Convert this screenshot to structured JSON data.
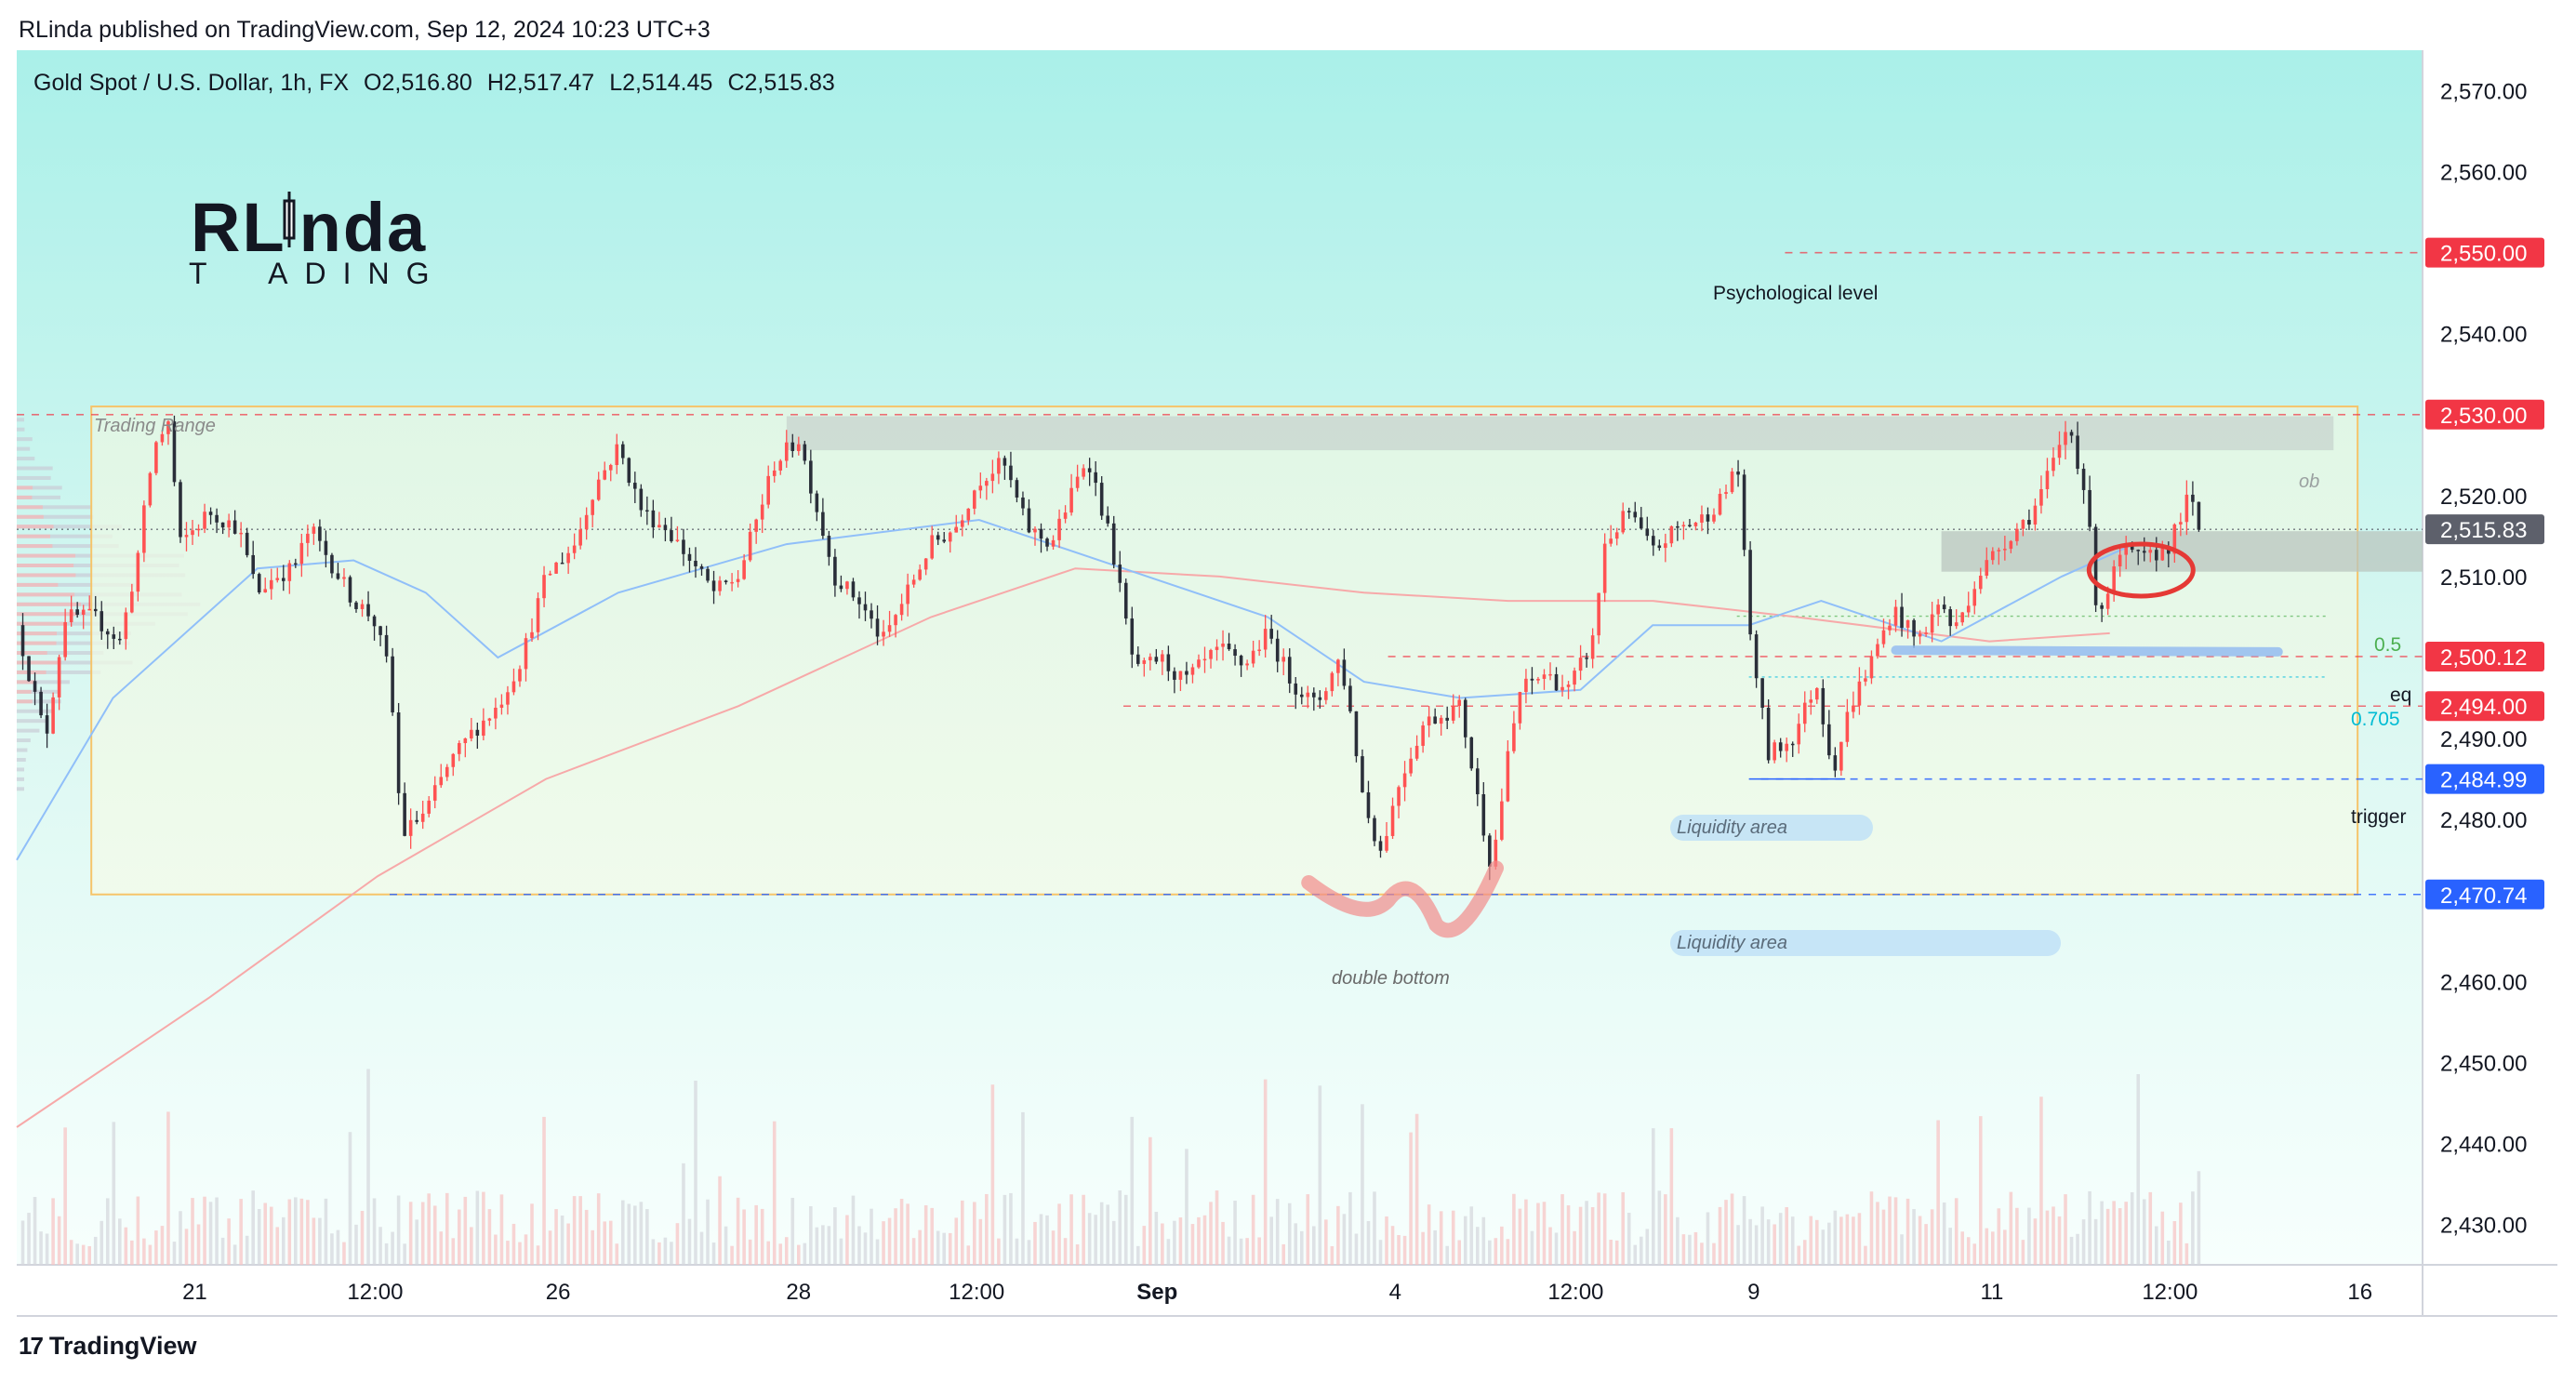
{
  "publisher": "RLinda published on TradingView.com, Sep 12, 2024 10:23 UTC+3",
  "brand": {
    "line1": "RLinda",
    "line2": "TRADING",
    "line1_parts": [
      "R",
      "L",
      "nda"
    ],
    "line2_parts": [
      "T",
      "ADING"
    ]
  },
  "footer": {
    "logo_text": "TradingView",
    "logo_mark": "17"
  },
  "colors": {
    "up": "#ff5252",
    "down": "#2a2e39",
    "price_label": "#f23645",
    "blue_label": "#2962ff",
    "last_label": "#5d606b",
    "ma_blue": "#90bff9",
    "ma_red": "#f7a9a9"
  },
  "chart_data": {
    "type": "candlestick",
    "title": "Gold Spot / U.S. Dollar, 1h, FX",
    "ohlc": {
      "open_label": "O",
      "open": "2,516.80",
      "high_label": "H",
      "high": "2,517.47",
      "low_label": "L",
      "low": "2,514.45",
      "close_label": "C",
      "close": "2,515.83"
    },
    "ylim": [
      2425,
      2575
    ],
    "y_ticks": [
      2570,
      2560,
      2540,
      2520,
      2510,
      2490,
      2480,
      2460,
      2450,
      2440,
      2430
    ],
    "y_tick_labels": [
      "2,570.00",
      "2,560.00",
      "2,540.00",
      "2,520.00",
      "2,510.00",
      "2,490.00",
      "2,480.00",
      "2,460.00",
      "2,450.00",
      "2,440.00",
      "2,430.00"
    ],
    "x_ticks": [
      {
        "label": "21",
        "t": 0.074,
        "bold": false
      },
      {
        "label": "12:00",
        "t": 0.149,
        "bold": false
      },
      {
        "label": "26",
        "t": 0.225,
        "bold": false
      },
      {
        "label": "28",
        "t": 0.325,
        "bold": false
      },
      {
        "label": "12:00",
        "t": 0.399,
        "bold": false
      },
      {
        "label": "Sep",
        "t": 0.474,
        "bold": true
      },
      {
        "label": "4",
        "t": 0.573,
        "bold": false
      },
      {
        "label": "12:00",
        "t": 0.648,
        "bold": false
      },
      {
        "label": "9",
        "t": 0.722,
        "bold": false
      },
      {
        "label": "11",
        "t": 0.821,
        "bold": false
      },
      {
        "label": "12:00",
        "t": 0.895,
        "bold": false
      },
      {
        "label": "16",
        "t": 0.974,
        "bold": false
      }
    ],
    "price_levels": [
      {
        "value": 2550.0,
        "label": "2,550.00",
        "kind": "red",
        "line": "dashed-red"
      },
      {
        "value": 2530.0,
        "label": "2,530.00",
        "kind": "red",
        "line": "dashed-red"
      },
      {
        "value": 2515.83,
        "label": "2,515.83",
        "kind": "last",
        "line": "dotted-gray"
      },
      {
        "value": 2500.12,
        "label": "2,500.12",
        "kind": "red",
        "line": "dashed-red"
      },
      {
        "value": 2494.0,
        "label": "2,494.00",
        "kind": "red",
        "line": "dashed-red"
      },
      {
        "value": 2484.99,
        "label": "2,484.99",
        "kind": "blue",
        "line": "dashed-blue"
      },
      {
        "value": 2470.74,
        "label": "2,470.74",
        "kind": "blue",
        "line": "dashed-blue"
      }
    ],
    "annotations": {
      "trading_range": "Trading Range",
      "psychological": "Psychological level",
      "ob": "ob",
      "fib_05": "0.5",
      "eq": "eq",
      "fib_0705": "0.705",
      "trigger": "trigger",
      "liquidity_1": "Liquidity area",
      "liquidity_2": "Liquidity area",
      "double_bottom": "double bottom"
    },
    "trading_range": {
      "t_start": 0.031,
      "t_end": 0.973,
      "low": 2470.74,
      "high": 2531.0
    },
    "ob_zone": {
      "t_start": 0.32,
      "t_end": 0.963,
      "low": 2525.6,
      "high": 2529.8
    },
    "fvg_zone": {
      "t_start": 0.8,
      "t_end": 1.0,
      "low": 2510.6,
      "high": 2515.6
    },
    "path_keypoints": [
      [
        0.0,
        2504
      ],
      [
        0.012,
        2490
      ],
      [
        0.02,
        2505
      ],
      [
        0.032,
        2505
      ],
      [
        0.043,
        2502
      ],
      [
        0.05,
        2512
      ],
      [
        0.057,
        2526
      ],
      [
        0.063,
        2529
      ],
      [
        0.068,
        2514
      ],
      [
        0.08,
        2518
      ],
      [
        0.092,
        2516
      ],
      [
        0.1,
        2508
      ],
      [
        0.107,
        2510
      ],
      [
        0.115,
        2511
      ],
      [
        0.122,
        2516
      ],
      [
        0.13,
        2512
      ],
      [
        0.14,
        2507
      ],
      [
        0.148,
        2505
      ],
      [
        0.155,
        2498
      ],
      [
        0.16,
        2478
      ],
      [
        0.17,
        2481
      ],
      [
        0.18,
        2487
      ],
      [
        0.19,
        2491
      ],
      [
        0.2,
        2494
      ],
      [
        0.21,
        2500
      ],
      [
        0.22,
        2510
      ],
      [
        0.232,
        2514
      ],
      [
        0.24,
        2521
      ],
      [
        0.25,
        2526
      ],
      [
        0.26,
        2518
      ],
      [
        0.27,
        2516
      ],
      [
        0.28,
        2512
      ],
      [
        0.29,
        2508
      ],
      [
        0.3,
        2510
      ],
      [
        0.315,
        2524
      ],
      [
        0.325,
        2527
      ],
      [
        0.34,
        2510
      ],
      [
        0.35,
        2507
      ],
      [
        0.36,
        2502
      ],
      [
        0.37,
        2508
      ],
      [
        0.38,
        2514
      ],
      [
        0.39,
        2516
      ],
      [
        0.4,
        2522
      ],
      [
        0.41,
        2524
      ],
      [
        0.42,
        2516
      ],
      [
        0.43,
        2514
      ],
      [
        0.445,
        2525
      ],
      [
        0.455,
        2514
      ],
      [
        0.465,
        2498
      ],
      [
        0.475,
        2500
      ],
      [
        0.485,
        2497
      ],
      [
        0.5,
        2501
      ],
      [
        0.51,
        2499
      ],
      [
        0.52,
        2503
      ],
      [
        0.53,
        2497
      ],
      [
        0.54,
        2494
      ],
      [
        0.55,
        2500
      ],
      [
        0.555,
        2492
      ],
      [
        0.56,
        2482
      ],
      [
        0.567,
        2476
      ],
      [
        0.575,
        2485
      ],
      [
        0.585,
        2492
      ],
      [
        0.6,
        2494
      ],
      [
        0.607,
        2483
      ],
      [
        0.613,
        2474
      ],
      [
        0.62,
        2488
      ],
      [
        0.625,
        2496
      ],
      [
        0.635,
        2498
      ],
      [
        0.645,
        2496
      ],
      [
        0.655,
        2502
      ],
      [
        0.66,
        2514
      ],
      [
        0.67,
        2518
      ],
      [
        0.68,
        2513
      ],
      [
        0.69,
        2516
      ],
      [
        0.7,
        2517
      ],
      [
        0.71,
        2520
      ],
      [
        0.715,
        2525
      ],
      [
        0.72,
        2504
      ],
      [
        0.728,
        2488
      ],
      [
        0.738,
        2490
      ],
      [
        0.748,
        2497
      ],
      [
        0.755,
        2486
      ],
      [
        0.762,
        2494
      ],
      [
        0.77,
        2499
      ],
      [
        0.78,
        2506
      ],
      [
        0.79,
        2502
      ],
      [
        0.8,
        2507
      ],
      [
        0.805,
        2503
      ],
      [
        0.815,
        2510
      ],
      [
        0.825,
        2514
      ],
      [
        0.838,
        2518
      ],
      [
        0.848,
        2525
      ],
      [
        0.853,
        2529
      ],
      [
        0.86,
        2520
      ],
      [
        0.865,
        2505
      ],
      [
        0.875,
        2513
      ],
      [
        0.885,
        2512
      ],
      [
        0.895,
        2514
      ],
      [
        0.903,
        2520
      ],
      [
        0.907,
        2515.8
      ]
    ],
    "ma_blue": [
      [
        0.0,
        2475
      ],
      [
        0.04,
        2495
      ],
      [
        0.1,
        2511
      ],
      [
        0.14,
        2512
      ],
      [
        0.17,
        2508
      ],
      [
        0.2,
        2500
      ],
      [
        0.25,
        2508
      ],
      [
        0.32,
        2514
      ],
      [
        0.4,
        2517
      ],
      [
        0.47,
        2510
      ],
      [
        0.52,
        2505
      ],
      [
        0.56,
        2497
      ],
      [
        0.6,
        2495
      ],
      [
        0.65,
        2496
      ],
      [
        0.68,
        2504
      ],
      [
        0.72,
        2504
      ],
      [
        0.75,
        2507
      ],
      [
        0.8,
        2502
      ],
      [
        0.85,
        2510
      ],
      [
        0.88,
        2514
      ]
    ],
    "ma_red": [
      [
        0.0,
        2442
      ],
      [
        0.08,
        2458
      ],
      [
        0.15,
        2473
      ],
      [
        0.22,
        2485
      ],
      [
        0.3,
        2494
      ],
      [
        0.38,
        2505
      ],
      [
        0.44,
        2511
      ],
      [
        0.5,
        2510
      ],
      [
        0.56,
        2508
      ],
      [
        0.62,
        2507
      ],
      [
        0.68,
        2507
      ],
      [
        0.74,
        2505
      ],
      [
        0.82,
        2502
      ],
      [
        0.87,
        2503
      ]
    ]
  }
}
